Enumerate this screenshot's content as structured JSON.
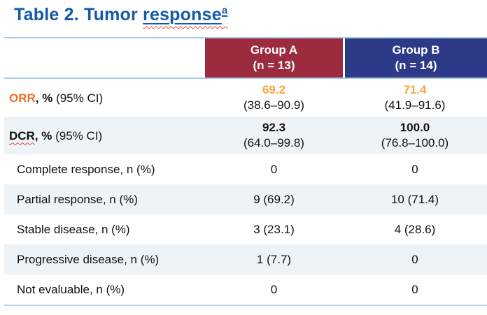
{
  "title": {
    "prefix": "Table 2. Tumor ",
    "underlined_word": "response",
    "footnote_marker": "a"
  },
  "colors": {
    "title_blue": "#1359A8",
    "group_a_header": "#9C2B3F",
    "group_b_header": "#2C3A87",
    "light_row_tint": "#EEF3F8",
    "header_border_light_blue": "#A9CBE9",
    "bottom_rule_blue": "#4677BE",
    "orr_label_orange": "#ED7225",
    "orr_value_orange": "#F9A23C",
    "spellcheck_red": "#E8453C"
  },
  "table": {
    "columns": [
      {
        "label": "Group A",
        "sub": "(n = 13)"
      },
      {
        "label": "Group B",
        "sub": "(n = 14)"
      }
    ],
    "rows": [
      {
        "label_strong": "ORR",
        "label_bold": ", %",
        "label_rest": " (95% CI)",
        "group_a": "69.2",
        "group_a_ci": "(38.6–90.9)",
        "group_b": "71.4",
        "group_b_ci": "(41.9–91.6)"
      },
      {
        "label_strong": "DCR",
        "label_bold": ", %",
        "label_rest": " (95% CI)",
        "group_a": "92.3",
        "group_a_ci": "(64.0–99.8)",
        "group_b": "100.0",
        "group_b_ci": "(76.8–100.0)"
      },
      {
        "label": "Complete response, n (%)",
        "group_a": "0",
        "group_b": "0"
      },
      {
        "label": "Partial response, n (%)",
        "group_a": "9 (69.2)",
        "group_b": "10 (71.4)"
      },
      {
        "label": "Stable disease, n (%)",
        "group_a": "3 (23.1)",
        "group_b": "4 (28.6)"
      },
      {
        "label": "Progressive disease, n (%)",
        "group_a": "1 (7.7)",
        "group_b": "0"
      },
      {
        "label": "Not evaluable, n (%)",
        "group_a": "0",
        "group_b": "0"
      }
    ]
  },
  "chart_data": {
    "type": "table",
    "title": "Table 2. Tumor response (a)",
    "columns": [
      "",
      "Group A (n = 13)",
      "Group B (n = 14)"
    ],
    "rows": [
      [
        "ORR, % (95% CI)",
        "69.2 (38.6–90.9)",
        "71.4 (41.9–91.6)"
      ],
      [
        "DCR, % (95% CI)",
        "92.3 (64.0–99.8)",
        "100.0 (76.8–100.0)"
      ],
      [
        "Complete response, n (%)",
        "0",
        "0"
      ],
      [
        "Partial response, n (%)",
        "9 (69.2)",
        "10 (71.4)"
      ],
      [
        "Stable disease, n (%)",
        "3 (23.1)",
        "4 (28.6)"
      ],
      [
        "Progressive disease, n (%)",
        "1 (7.7)",
        "0"
      ],
      [
        "Not evaluable, n (%)",
        "0",
        "0"
      ]
    ]
  }
}
